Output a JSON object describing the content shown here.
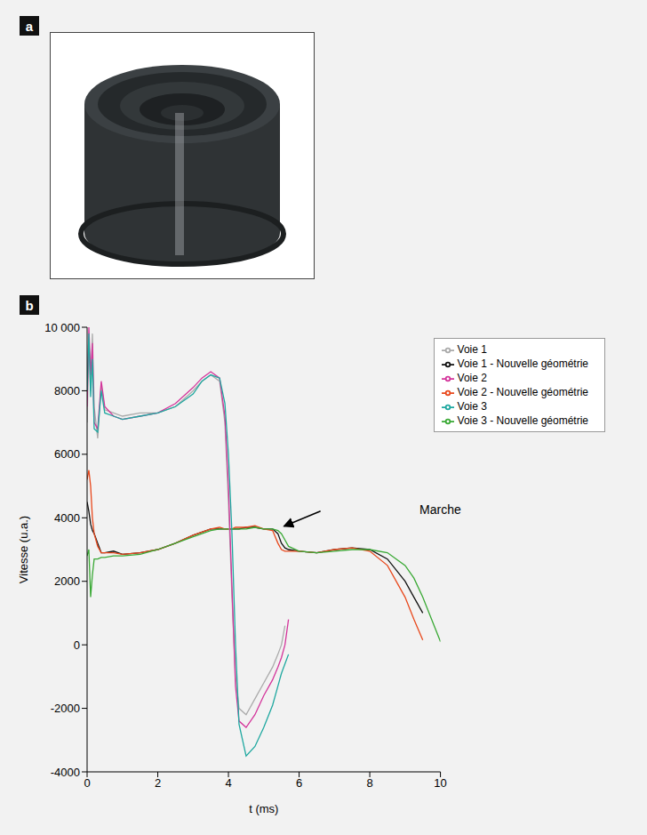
{
  "panel_labels": [
    "a",
    "b"
  ],
  "chart_data": {
    "type": "line",
    "xlabel": "t (ms)",
    "ylabel": "Vitesse (u.a.)",
    "xlim": [
      0,
      10
    ],
    "xticks": [
      0,
      2,
      4,
      6,
      8,
      10
    ],
    "ylim": [
      -4000,
      10000
    ],
    "yticks": [
      -4000,
      -2000,
      0,
      2000,
      4000,
      6000,
      8000,
      {
        "value": 10000,
        "label": "10 000"
      }
    ],
    "grid": false,
    "legend": "upper right",
    "annotations": [
      {
        "text": "Marche",
        "x": 5.45,
        "y": 3650
      }
    ],
    "x": [
      0,
      0.05,
      0.1,
      0.15,
      0.2,
      0.3,
      0.4,
      0.5,
      0.75,
      1,
      1.5,
      2,
      2.5,
      3,
      3.25,
      3.5,
      3.75,
      3.9,
      4.0,
      4.1,
      4.2,
      4.3,
      4.5,
      4.75,
      5,
      5.25,
      5.4,
      5.5,
      5.6,
      5.7,
      6,
      6.5,
      7,
      7.5,
      8,
      8.5,
      9,
      9.25,
      9.5,
      9.75,
      10
    ],
    "series": [
      {
        "name": "Voie 1 - Nouvelle géométrie",
        "color": "#111111",
        "values": [
          4500,
          4200,
          3800,
          3600,
          3500,
          3200,
          2900,
          2900,
          2950,
          2850,
          2900,
          3000,
          3200,
          3450,
          3550,
          3650,
          3650,
          3650,
          3650,
          3650,
          3650,
          3650,
          3700,
          3700,
          3650,
          3650,
          3500,
          3200,
          3050,
          3000,
          2950,
          2900,
          3000,
          3050,
          3000,
          2700,
          2000,
          1500,
          1000,
          null,
          null
        ]
      },
      {
        "name": "Voie 2 - Nouvelle géométrie",
        "color": "#e8481c",
        "values": [
          5200,
          5500,
          5000,
          4000,
          3500,
          3100,
          2900,
          2900,
          2900,
          2850,
          2900,
          3000,
          3200,
          3450,
          3550,
          3650,
          3700,
          3650,
          3650,
          3650,
          3700,
          3700,
          3700,
          3750,
          3650,
          3600,
          3200,
          3000,
          2950,
          2950,
          2950,
          2900,
          3000,
          3050,
          2950,
          2500,
          1500,
          800,
          150,
          null,
          null
        ]
      },
      {
        "name": "Voie 3 - Nouvelle géométrie",
        "color": "#3aa935",
        "values": [
          2800,
          3000,
          1500,
          2200,
          2700,
          2700,
          2750,
          2750,
          2800,
          2800,
          2850,
          3000,
          3200,
          3400,
          3500,
          3600,
          3650,
          3650,
          3650,
          3650,
          3650,
          3650,
          3650,
          3700,
          3650,
          3650,
          3600,
          3500,
          3300,
          3100,
          2950,
          2900,
          2950,
          3000,
          3000,
          2900,
          2500,
          2100,
          1500,
          800,
          100
        ]
      },
      {
        "name": "Voie 1",
        "color": "#aaaaaa",
        "values": [
          7000,
          9500,
          8000,
          9800,
          7500,
          6500,
          8200,
          7400,
          7300,
          7200,
          7300,
          7300,
          7500,
          8000,
          8300,
          8500,
          8300,
          7000,
          4500,
          1500,
          -1000,
          -2000,
          -2200,
          -1700,
          -1200,
          -700,
          -300,
          0,
          600,
          null,
          null,
          null,
          null,
          null,
          null,
          null,
          null,
          null,
          null,
          null,
          null
        ]
      },
      {
        "name": "Voie 2",
        "color": "#d4359b",
        "values": [
          7500,
          10000,
          8500,
          9500,
          7000,
          6800,
          8300,
          7500,
          7200,
          7100,
          7200,
          7300,
          7600,
          8100,
          8400,
          8600,
          8400,
          7200,
          5000,
          1800,
          -1300,
          -2400,
          -2600,
          -2200,
          -1600,
          -1100,
          -700,
          -400,
          0,
          800,
          null,
          null,
          null,
          null,
          null,
          null,
          null,
          null,
          null,
          null,
          null
        ]
      },
      {
        "name": "Voie 3",
        "color": "#1fa8a0",
        "values": [
          8000,
          9800,
          7800,
          9000,
          6800,
          6700,
          8000,
          7300,
          7200,
          7100,
          7200,
          7300,
          7500,
          7900,
          8300,
          8500,
          8400,
          7600,
          6000,
          3500,
          0,
          -2500,
          -3500,
          -3200,
          -2600,
          -1900,
          -1300,
          -900,
          -600,
          -300,
          null,
          null,
          null,
          null,
          null,
          null,
          null,
          null,
          null,
          null,
          null
        ]
      }
    ]
  }
}
